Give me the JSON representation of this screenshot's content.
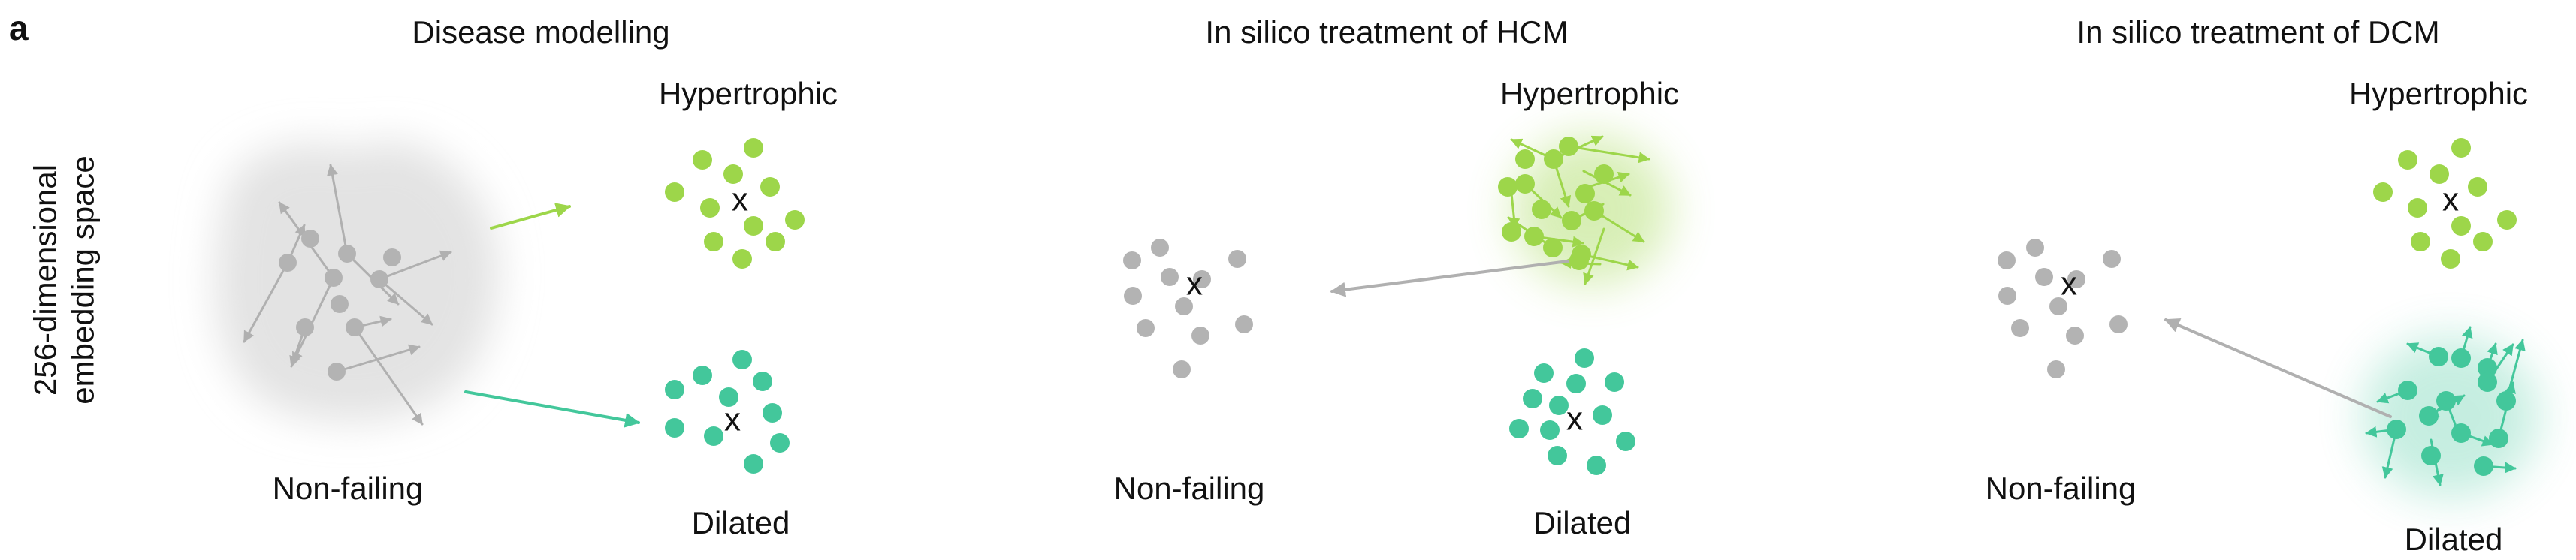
{
  "panel_label": "a",
  "axis_label": {
    "line1": "256-dimensional",
    "line2": "embedding space"
  },
  "centroid_marker": "x",
  "colors": {
    "non_failing": "#b3b3b3",
    "hypertrophic": "#9dd64a",
    "dilated": "#43c79b",
    "arrow_grey": "#b0b0b0",
    "glow_grey": "#e3e3e3"
  },
  "panels": [
    {
      "title": "Disease modelling",
      "non_failing_label": "Non-failing",
      "hypertrophic_label": "Hypertrophic",
      "dilated_label": "Dilated"
    },
    {
      "title": "In silico treatment of HCM",
      "non_failing_label": "Non-failing",
      "hypertrophic_label": "Hypertrophic",
      "dilated_label": "Dilated"
    },
    {
      "title": "In silico treatment of DCM",
      "non_failing_label": "Non-failing",
      "hypertrophic_label": "Hypertrophic",
      "dilated_label": "Dilated"
    }
  ]
}
